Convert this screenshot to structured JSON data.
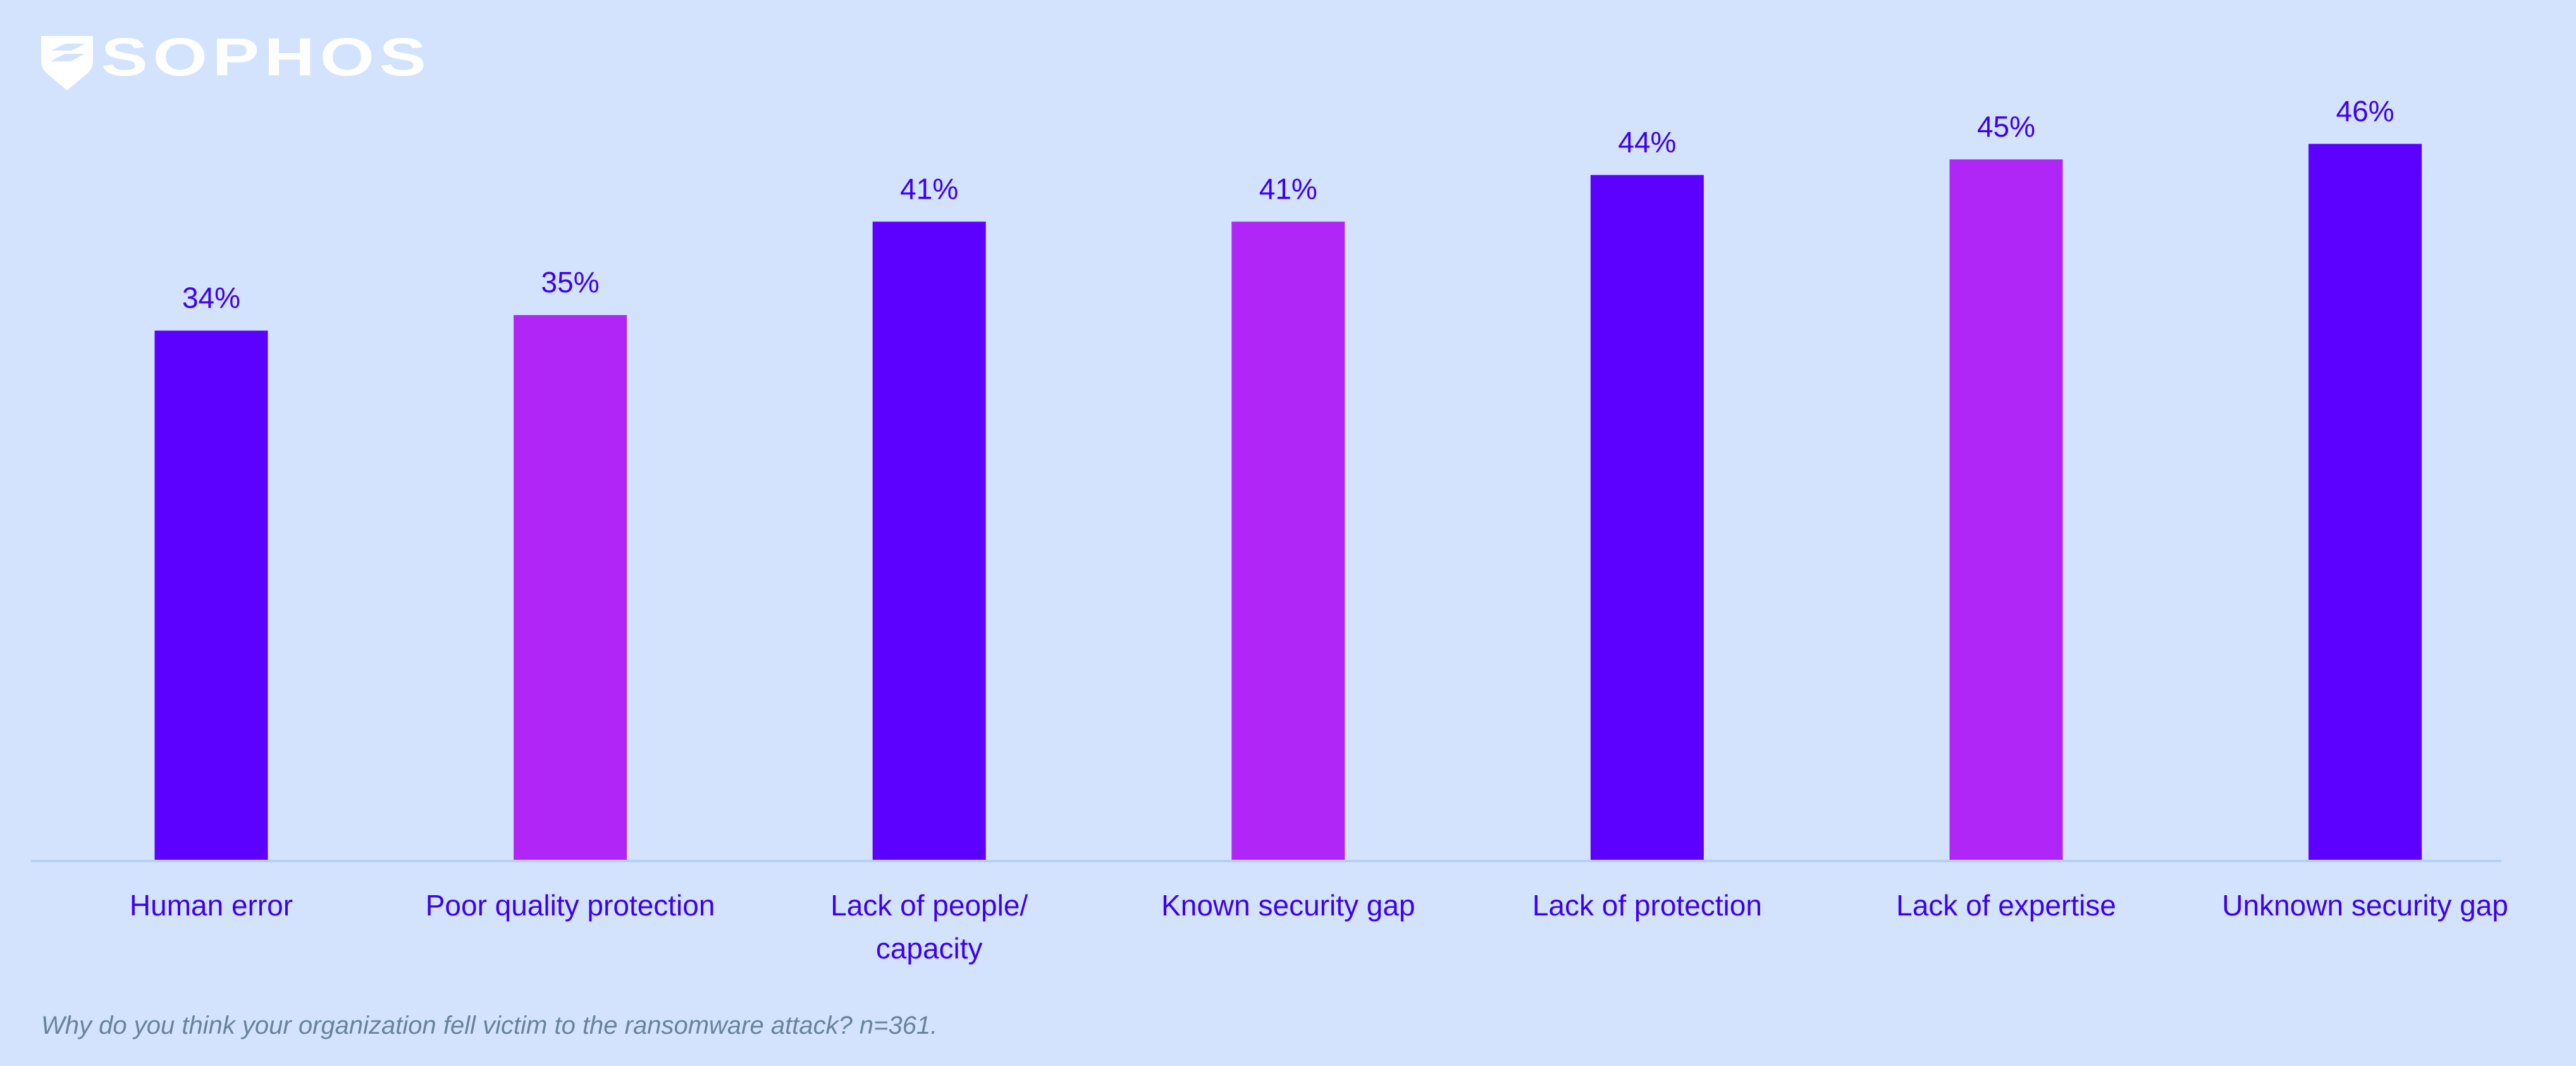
{
  "logo": {
    "text": "SOPHOS"
  },
  "chart_data": {
    "type": "bar",
    "title": "",
    "categories": [
      "Human error",
      "Poor quality protection",
      "Lack of people/ capacity",
      "Known security gap",
      "Lack of protection",
      "Lack of expertise",
      "Unknown security gap"
    ],
    "category_lines": [
      [
        "Human error"
      ],
      [
        "Poor quality protection"
      ],
      [
        "Lack of people/",
        "capacity"
      ],
      [
        "Known security gap"
      ],
      [
        "Lack of protection"
      ],
      [
        "Lack of expertise"
      ],
      [
        "Unknown security gap"
      ]
    ],
    "values": [
      34,
      35,
      41,
      41,
      44,
      45,
      46
    ],
    "value_labels": [
      "34%",
      "35%",
      "41%",
      "41%",
      "44%",
      "45%",
      "46%"
    ],
    "bar_colors": [
      "#5c00ff",
      "#b026f6",
      "#5c00ff",
      "#b026f6",
      "#5c00ff",
      "#b026f6",
      "#5c00ff"
    ],
    "xlabel": "",
    "ylabel": "",
    "ylim": [
      0,
      55
    ],
    "grid": false,
    "legend": "none"
  },
  "caption": "Why do you think your organization fell victim to the ransomware attack? n=361.",
  "colors": {
    "background": "#d3e3fe",
    "text": "#3c00f2",
    "axis": "#b8cff5"
  }
}
